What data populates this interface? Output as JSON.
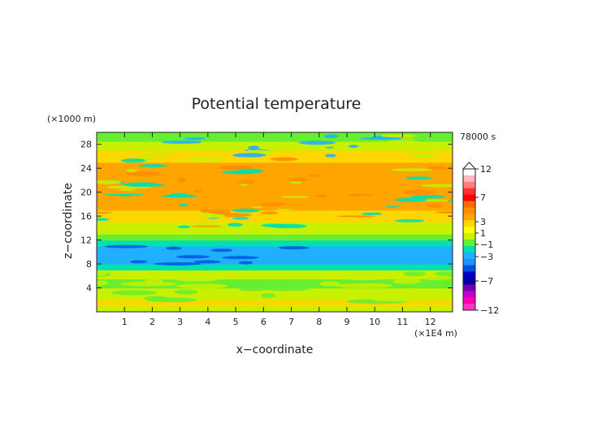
{
  "chart_data": {
    "type": "heatmap",
    "title": "Potential temperature",
    "xlabel": "x−coordinate",
    "ylabel": "z−coordinate",
    "x_unit": "(×1E4 m)",
    "y_unit": "(×1000 m)",
    "time_label": "78000 s",
    "xlim": [
      0,
      12.8
    ],
    "ylim": [
      0,
      30
    ],
    "x_ticks": [
      "1",
      "2",
      "3",
      "4",
      "5",
      "6",
      "7",
      "8",
      "9",
      "10",
      "11",
      "12"
    ],
    "y_ticks": [
      "4",
      "8",
      "12",
      "16",
      "20",
      "24",
      "28"
    ],
    "colorbar": {
      "labels": [
        "12",
        "7",
        "3",
        "1",
        "−1",
        "−3",
        "−7",
        "−12"
      ],
      "colors": [
        "#ffffff",
        "#ffb6c1",
        "#ff7f7f",
        "#ff3030",
        "#ff0000",
        "#ff6a00",
        "#ff8c00",
        "#ffa500",
        "#ffd700",
        "#ffff00",
        "#c8f000",
        "#66ee33",
        "#00e0b0",
        "#20b0ff",
        "#1e90ff",
        "#0050e0",
        "#0000c8",
        "#0000a0",
        "#7000b0",
        "#c000d0",
        "#ff00b0",
        "#ff33cc"
      ]
    },
    "layers": [
      {
        "z": [
          0,
          1
        ],
        "value": 0.0
      },
      {
        "z": [
          1,
          2
        ],
        "value": 1.0
      },
      {
        "z": [
          2,
          4
        ],
        "value": 0.3
      },
      {
        "z": [
          4,
          5.5
        ],
        "value": -0.5
      },
      {
        "z": [
          5.5,
          7
        ],
        "value": 0.0
      },
      {
        "z": [
          7,
          8
        ],
        "value": -1.8
      },
      {
        "z": [
          8,
          11
        ],
        "value": -2.6
      },
      {
        "z": [
          11,
          12
        ],
        "value": -1.5
      },
      {
        "z": [
          12,
          13
        ],
        "value": -0.6
      },
      {
        "z": [
          13,
          15
        ],
        "value": 0.5
      },
      {
        "z": [
          15,
          17
        ],
        "value": 1.2
      },
      {
        "z": [
          17,
          19
        ],
        "value": 2.2
      },
      {
        "z": [
          19,
          21
        ],
        "value": 2.8
      },
      {
        "z": [
          21,
          23
        ],
        "value": 2.4
      },
      {
        "z": [
          23,
          25
        ],
        "value": 2.9
      },
      {
        "z": [
          25,
          27
        ],
        "value": 1.4
      },
      {
        "z": [
          27,
          28.5
        ],
        "value": 0.3
      },
      {
        "z": [
          28.5,
          30
        ],
        "value": -0.2
      }
    ]
  }
}
